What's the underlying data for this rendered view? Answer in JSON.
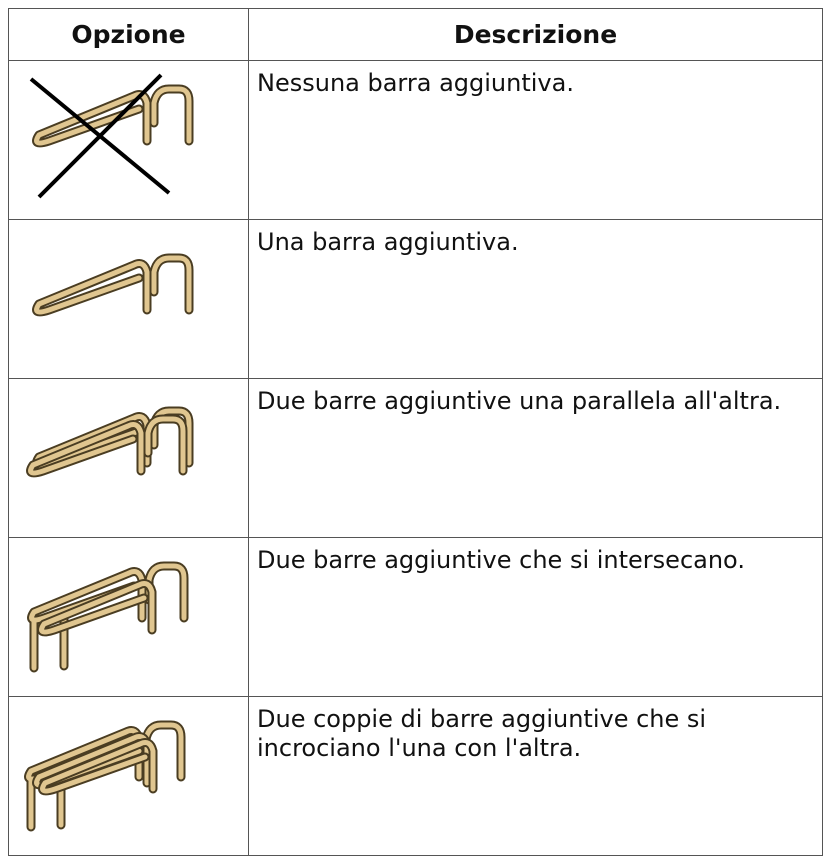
{
  "table": {
    "header": [
      "Opzione",
      "Descrizione"
    ],
    "rows": [
      {
        "description": "Nessuna barra aggiuntiva."
      },
      {
        "description": "Una barra aggiuntiva."
      },
      {
        "description": "Due barre aggiuntive una parallela all'altra."
      },
      {
        "description": "Due barre aggiuntive che si intersecano."
      },
      {
        "description": "Due coppie di barre aggiuntive che si incrociano l'una con l'altra."
      }
    ]
  }
}
